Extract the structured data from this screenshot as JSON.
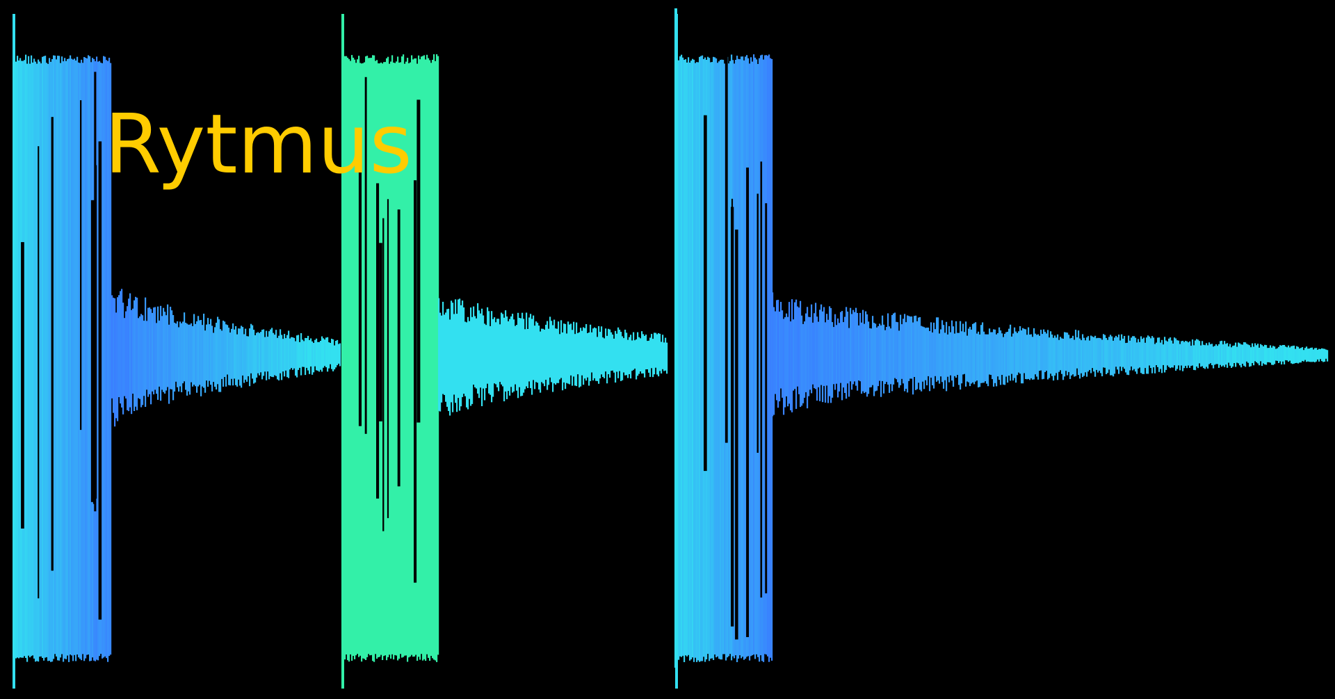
{
  "title": {
    "text": "Rytmus",
    "color": "#ffcc00"
  },
  "waveform": {
    "background_color": "#000000",
    "colors": {
      "cyan": "#33e0f0",
      "blue": "#3a7bff",
      "green": "#33f0a8"
    }
  }
}
